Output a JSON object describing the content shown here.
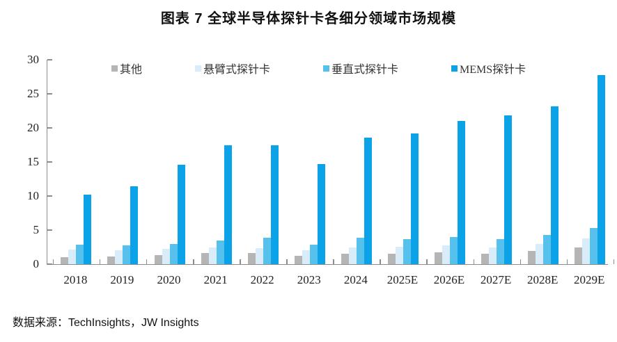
{
  "title": "图表 7 全球半导体探针卡各细分领域市场规模",
  "source": "数据来源：TechInsights，JW Insights",
  "colors": {
    "other": "#b5b5b5",
    "cantilever": "#d8ecfa",
    "vertical": "#57c1ee",
    "mems": "#0ca2e8",
    "axis": "#8c8c8c"
  },
  "chart_data": {
    "type": "bar",
    "title": "图表 7 全球半导体探针卡各细分领域市场规模",
    "categories": [
      "2018",
      "2019",
      "2020",
      "2021",
      "2022",
      "2023",
      "2024",
      "2025E",
      "2026E",
      "2027E",
      "2028E",
      "2029E"
    ],
    "series": [
      {
        "name": "其他",
        "color_key": "other",
        "values": [
          1.0,
          1.1,
          1.3,
          1.6,
          1.6,
          1.2,
          1.5,
          1.5,
          1.7,
          1.5,
          1.9,
          2.5
        ]
      },
      {
        "name": "悬臂式探针卡",
        "color_key": "cantilever",
        "values": [
          2.1,
          2.0,
          2.2,
          2.4,
          2.3,
          2.0,
          2.4,
          2.6,
          2.8,
          2.5,
          3.0,
          3.8
        ]
      },
      {
        "name": "垂直式探针卡",
        "color_key": "vertical",
        "values": [
          2.9,
          2.8,
          3.0,
          3.5,
          3.9,
          2.9,
          3.9,
          3.7,
          4.0,
          3.7,
          4.3,
          5.3
        ]
      },
      {
        "name": "MEMS探针卡",
        "color_key": "mems",
        "values": [
          10.2,
          11.4,
          14.6,
          17.4,
          17.5,
          14.7,
          18.6,
          19.2,
          21.0,
          21.8,
          23.2,
          27.8
        ]
      }
    ],
    "xlabel": "",
    "ylabel": "",
    "ylim": [
      0,
      30
    ],
    "yticks": [
      0,
      5,
      10,
      15,
      20,
      25,
      30
    ],
    "grid": false,
    "legend_position": "top"
  }
}
